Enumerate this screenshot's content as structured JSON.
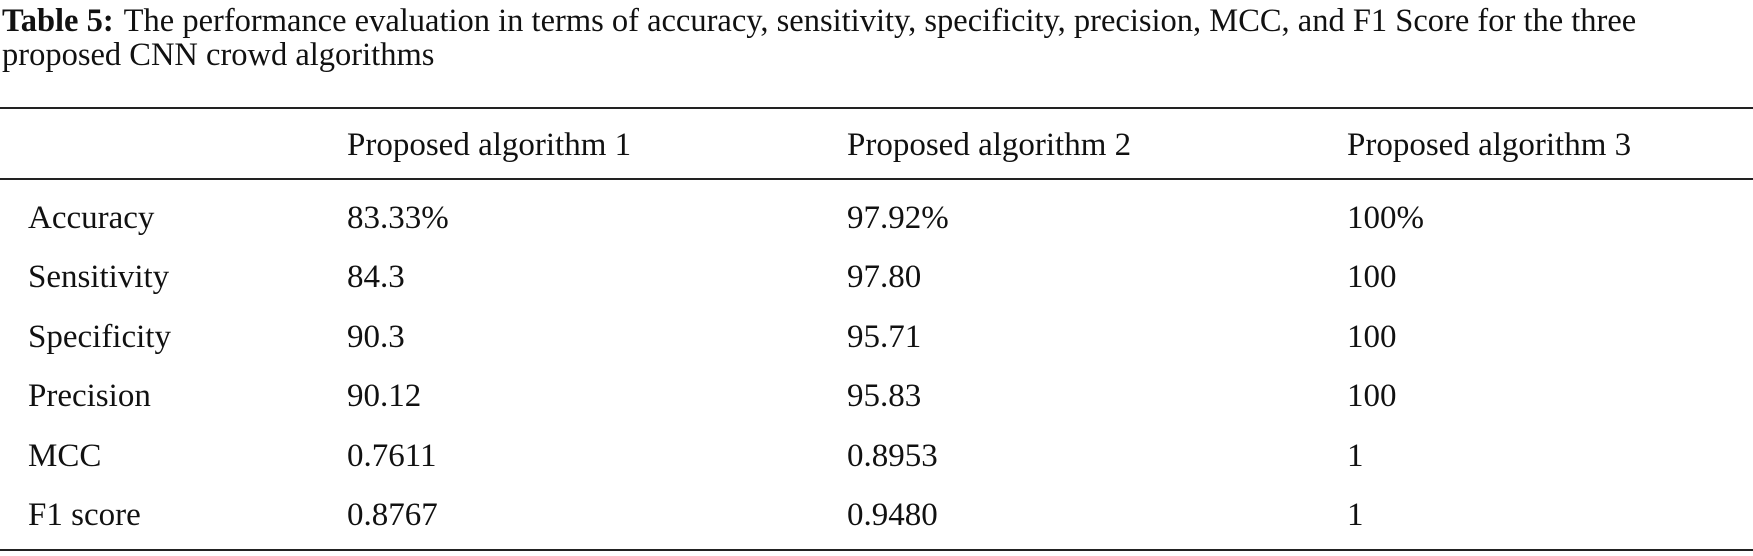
{
  "caption": {
    "label": "Table 5:",
    "text": "The performance evaluation in terms of accuracy, sensitivity, specificity, precision, MCC, and F1 Score for the three proposed CNN crowd algorithms"
  },
  "table": {
    "header": [
      "Proposed algorithm 1",
      "Proposed algorithm 2",
      "Proposed algorithm 3"
    ],
    "rows": [
      [
        "Accuracy",
        "83.33%",
        "97.92%",
        "100%"
      ],
      [
        "Sensitivity",
        "84.3",
        "97.80",
        "100"
      ],
      [
        "Specificity",
        "90.3",
        "95.71",
        "100"
      ],
      [
        "Precision",
        "90.12",
        "95.83",
        "100"
      ],
      [
        "MCC",
        "0.7611",
        "0.8953",
        "1"
      ],
      [
        "F1 score",
        "0.8767",
        "0.9480",
        "1"
      ]
    ]
  }
}
